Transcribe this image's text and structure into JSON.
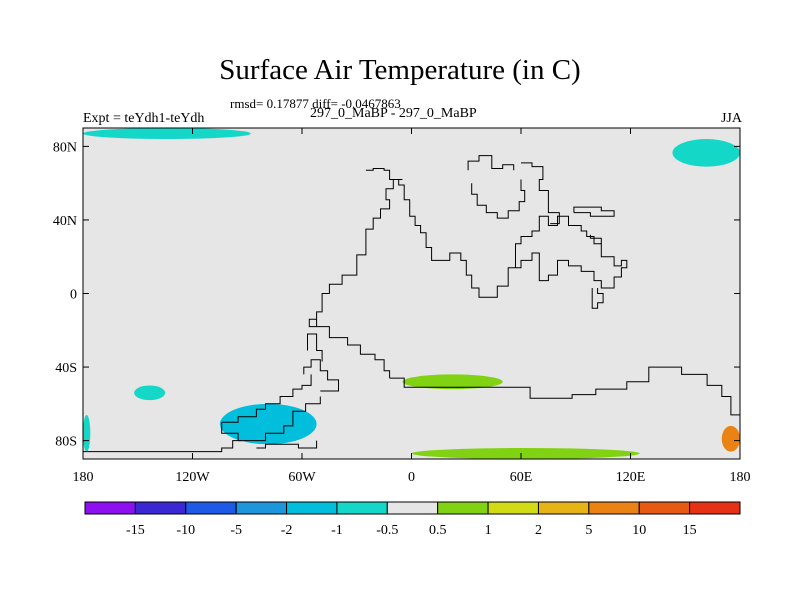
{
  "header": {
    "title": "Surface Air Temperature (in C)",
    "stats": "rmsd= 0.17877 diff= -0.0467863",
    "expt": "Expt = teYdh1-teYdh",
    "run": "297_0_MaBP - 297_0_MaBP",
    "season": "JJA"
  },
  "chart_data": {
    "type": "heatmap",
    "title": "Surface Air Temperature (in C)",
    "xlabel": "",
    "ylabel": "",
    "x_ticks": [
      {
        "value": -180,
        "label": "180"
      },
      {
        "value": -120,
        "label": "120W"
      },
      {
        "value": -60,
        "label": "60W"
      },
      {
        "value": 0,
        "label": "0"
      },
      {
        "value": 60,
        "label": "60E"
      },
      {
        "value": 120,
        "label": "120E"
      },
      {
        "value": 180,
        "label": "180"
      }
    ],
    "y_ticks": [
      {
        "value": 80,
        "label": "80N"
      },
      {
        "value": 40,
        "label": "40N"
      },
      {
        "value": 0,
        "label": "0"
      },
      {
        "value": -40,
        "label": "40S"
      },
      {
        "value": -80,
        "label": "80S"
      }
    ],
    "xlim": [
      -180,
      180
    ],
    "ylim": [
      -90,
      90
    ],
    "background_value_range": [
      -0.5,
      0.5
    ],
    "colorbar": {
      "levels": [
        "-15",
        "-10",
        "-5",
        "-2",
        "-1",
        "-0.5",
        "0.5",
        "1",
        "2",
        "5",
        "10",
        "15"
      ],
      "colors": [
        "#8c10f0",
        "#3c28d2",
        "#1e5ae6",
        "#1e96dc",
        "#00bedc",
        "#14d7c8",
        "#e6e6e6",
        "#82d214",
        "#d2dc14",
        "#e6b414",
        "#eb8214",
        "#e65a14",
        "#e63214"
      ]
    },
    "anomaly_regions": [
      {
        "name": "north-pacific-arctic",
        "value": -0.75,
        "lon": [
          -180,
          -88
        ],
        "lat": [
          84,
          90
        ]
      },
      {
        "name": "arctic-east",
        "value": -0.75,
        "lon": [
          143,
          180
        ],
        "lat": [
          69,
          84
        ]
      },
      {
        "name": "south-pacific",
        "value": -0.75,
        "lon": [
          -152,
          -135
        ],
        "lat": [
          -58,
          -50
        ]
      },
      {
        "name": "south-atlantic-band",
        "value": 0.75,
        "lon": [
          -5,
          50
        ],
        "lat": [
          -52,
          -44
        ]
      },
      {
        "name": "southern-ocean-band",
        "value": 0.75,
        "lon": [
          0,
          125
        ],
        "lat": [
          -90,
          -84
        ]
      },
      {
        "name": "antarctic-peninsula",
        "value": -1.5,
        "lon": [
          -105,
          -52
        ],
        "lat": [
          -82,
          -60
        ]
      },
      {
        "name": "antarctic-dateline",
        "value": -0.75,
        "lon": [
          -180,
          -176
        ],
        "lat": [
          -86,
          -66
        ]
      },
      {
        "name": "ross-sea-east",
        "value": 5,
        "lon": [
          170,
          180
        ],
        "lat": [
          -86,
          -72
        ]
      }
    ],
    "coastline": [
      [
        [
          -25,
          67
        ],
        [
          -21,
          67
        ],
        [
          -21,
          68
        ],
        [
          -15,
          68
        ],
        [
          -15,
          67
        ],
        [
          -12,
          67
        ],
        [
          -12,
          62
        ],
        [
          -7,
          62
        ],
        [
          -7,
          59
        ],
        [
          -4,
          59
        ],
        [
          -4,
          51
        ],
        [
          -1,
          51
        ],
        [
          -1,
          42
        ],
        [
          2,
          42
        ],
        [
          2,
          37
        ],
        [
          5,
          37
        ],
        [
          5,
          33
        ],
        [
          8,
          33
        ],
        [
          8,
          25
        ],
        [
          11,
          25
        ],
        [
          11,
          18
        ],
        [
          21,
          18
        ],
        [
          21,
          22
        ],
        [
          27,
          22
        ],
        [
          27,
          18
        ],
        [
          30,
          18
        ],
        [
          30,
          10
        ],
        [
          33,
          10
        ],
        [
          33,
          3
        ],
        [
          37,
          3
        ],
        [
          37,
          -2
        ],
        [
          47,
          -2
        ],
        [
          47,
          4
        ],
        [
          53,
          4
        ],
        [
          53,
          14
        ],
        [
          57,
          14
        ],
        [
          57,
          27
        ],
        [
          60,
          27
        ],
        [
          60,
          31
        ],
        [
          66,
          31
        ],
        [
          66,
          34
        ],
        [
          70,
          34
        ],
        [
          70,
          42
        ],
        [
          75,
          42
        ],
        [
          75,
          37
        ],
        [
          80,
          37
        ],
        [
          80,
          42
        ],
        [
          86,
          42
        ],
        [
          86,
          37
        ],
        [
          93,
          37
        ],
        [
          93,
          34
        ],
        [
          96,
          34
        ],
        [
          96,
          31
        ],
        [
          100,
          31
        ],
        [
          100,
          27
        ],
        [
          104,
          27
        ],
        [
          104,
          20
        ],
        [
          111,
          20
        ],
        [
          111,
          15
        ],
        [
          115,
          15
        ],
        [
          115,
          18
        ],
        [
          118,
          18
        ],
        [
          118,
          14
        ],
        [
          115,
          14
        ],
        [
          115,
          9
        ],
        [
          111,
          9
        ],
        [
          111,
          3
        ],
        [
          104,
          3
        ],
        [
          104,
          7
        ],
        [
          100,
          7
        ],
        [
          100,
          12
        ],
        [
          93,
          12
        ],
        [
          93,
          15
        ],
        [
          86,
          15
        ],
        [
          86,
          18
        ],
        [
          80,
          18
        ],
        [
          80,
          10
        ],
        [
          75,
          10
        ],
        [
          75,
          7
        ],
        [
          70,
          7
        ],
        [
          70,
          22
        ],
        [
          66,
          22
        ],
        [
          66,
          18
        ],
        [
          60,
          18
        ],
        [
          60,
          14
        ],
        [
          53,
          14
        ]
      ],
      [
        [
          60,
          71
        ],
        [
          66,
          71
        ],
        [
          66,
          69
        ],
        [
          72,
          69
        ],
        [
          72,
          62
        ],
        [
          70,
          62
        ],
        [
          70,
          56
        ],
        [
          75,
          56
        ],
        [
          75,
          44
        ],
        [
          81,
          44
        ],
        [
          81,
          38
        ],
        [
          76,
          38
        ]
      ],
      [
        [
          31,
          67
        ],
        [
          31,
          72
        ],
        [
          37,
          72
        ],
        [
          37,
          75
        ],
        [
          44,
          75
        ],
        [
          44,
          68
        ],
        [
          50,
          68
        ],
        [
          50,
          70
        ],
        [
          56,
          70
        ],
        [
          56,
          67
        ]
      ],
      [
        [
          33,
          60
        ],
        [
          33,
          54
        ],
        [
          36,
          54
        ],
        [
          36,
          48
        ],
        [
          41,
          48
        ],
        [
          41,
          44
        ],
        [
          47,
          44
        ],
        [
          47,
          41
        ],
        [
          53,
          41
        ],
        [
          53,
          45
        ],
        [
          59,
          45
        ],
        [
          59,
          50
        ],
        [
          62,
          50
        ],
        [
          62,
          56
        ],
        [
          60,
          56
        ],
        [
          60,
          62
        ]
      ],
      [
        [
          89,
          44
        ],
        [
          89,
          47
        ],
        [
          104,
          47
        ],
        [
          104,
          45
        ],
        [
          111,
          45
        ],
        [
          111,
          42
        ],
        [
          98,
          42
        ],
        [
          98,
          44
        ],
        [
          89,
          44
        ]
      ],
      [
        [
          98,
          32
        ],
        [
          98,
          30
        ],
        [
          104,
          30
        ],
        [
          104,
          27
        ]
      ],
      [
        [
          102,
          3
        ],
        [
          102,
          0
        ],
        [
          105,
          0
        ],
        [
          105,
          -5
        ],
        [
          102,
          -5
        ],
        [
          102,
          -8
        ],
        [
          99,
          -8
        ],
        [
          99,
          3
        ]
      ],
      [
        [
          -52,
          -18
        ],
        [
          -52,
          -10
        ],
        [
          -49,
          -10
        ],
        [
          -49,
          0
        ],
        [
          -45,
          0
        ],
        [
          -45,
          5
        ],
        [
          -38,
          5
        ],
        [
          -38,
          10
        ],
        [
          -30,
          10
        ],
        [
          -30,
          21
        ],
        [
          -25,
          21
        ],
        [
          -25,
          35
        ],
        [
          -21,
          35
        ],
        [
          -21,
          41
        ],
        [
          -17,
          41
        ],
        [
          -17,
          46
        ],
        [
          -12,
          46
        ],
        [
          -12,
          51
        ],
        [
          -14,
          51
        ],
        [
          -14,
          57
        ],
        [
          -10,
          57
        ],
        [
          -10,
          62
        ],
        [
          -5,
          62
        ]
      ],
      [
        [
          -52,
          -18
        ],
        [
          -56,
          -18
        ],
        [
          -56,
          -14
        ],
        [
          -52,
          -14
        ]
      ],
      [
        [
          -57,
          -31
        ],
        [
          -57,
          -22
        ],
        [
          -52,
          -22
        ],
        [
          -52,
          -31
        ],
        [
          -49,
          -31
        ],
        [
          -49,
          -37
        ]
      ],
      [
        [
          -52,
          -18
        ],
        [
          -45,
          -18
        ],
        [
          -45,
          -24
        ],
        [
          -35,
          -24
        ],
        [
          -35,
          -28
        ],
        [
          -28,
          -28
        ],
        [
          -28,
          -33
        ],
        [
          -20,
          -33
        ],
        [
          -20,
          -36
        ],
        [
          -15,
          -36
        ],
        [
          -15,
          -42
        ],
        [
          -12,
          -42
        ],
        [
          -12,
          -46
        ]
      ],
      [
        [
          -59,
          -44
        ],
        [
          -59,
          -40
        ],
        [
          -55,
          -40
        ],
        [
          -55,
          -36
        ],
        [
          -50,
          -36
        ],
        [
          -50,
          -42
        ],
        [
          -46,
          -42
        ],
        [
          -46,
          -47
        ],
        [
          -40,
          -47
        ],
        [
          -40,
          -53
        ],
        [
          -50,
          -53
        ]
      ],
      [
        [
          -104,
          -70
        ],
        [
          -95,
          -70
        ],
        [
          -95,
          -67
        ],
        [
          -85,
          -67
        ],
        [
          -85,
          -63
        ],
        [
          -80,
          -63
        ],
        [
          -80,
          -60
        ],
        [
          -72,
          -60
        ],
        [
          -72,
          -56
        ],
        [
          -65,
          -56
        ],
        [
          -65,
          -52
        ],
        [
          -60,
          -52
        ],
        [
          -60,
          -50
        ],
        [
          -55,
          -50
        ],
        [
          -55,
          -44
        ]
      ],
      [
        [
          -104,
          -70
        ],
        [
          -104,
          -76
        ],
        [
          -95,
          -76
        ],
        [
          -95,
          -80
        ],
        [
          -80,
          -80
        ],
        [
          -80,
          -76
        ],
        [
          -70,
          -76
        ],
        [
          -70,
          -72
        ],
        [
          -65,
          -72
        ],
        [
          -65,
          -64
        ],
        [
          -58,
          -64
        ],
        [
          -58,
          -60
        ],
        [
          -50,
          -60
        ],
        [
          -50,
          -56
        ]
      ],
      [
        [
          -85,
          -84
        ],
        [
          -80,
          -84
        ],
        [
          -80,
          -82
        ],
        [
          -62,
          -82
        ],
        [
          -62,
          -84
        ],
        [
          -52,
          -84
        ],
        [
          -52,
          -80
        ]
      ],
      [
        [
          -180,
          -86
        ],
        [
          -104,
          -86
        ],
        [
          -104,
          -84
        ],
        [
          -98,
          -84
        ],
        [
          -98,
          -80
        ],
        [
          -93,
          -80
        ]
      ],
      [
        [
          -12,
          -46
        ],
        [
          -4,
          -46
        ],
        [
          -4,
          -51
        ],
        [
          65,
          -51
        ],
        [
          65,
          -57
        ],
        [
          88,
          -57
        ],
        [
          88,
          -55
        ],
        [
          101,
          -55
        ],
        [
          101,
          -52
        ],
        [
          118,
          -52
        ],
        [
          118,
          -48
        ],
        [
          130,
          -48
        ],
        [
          130,
          -40
        ],
        [
          148,
          -40
        ],
        [
          148,
          -44
        ],
        [
          162,
          -44
        ],
        [
          162,
          -50
        ],
        [
          170,
          -50
        ],
        [
          170,
          -56
        ],
        [
          175,
          -56
        ],
        [
          175,
          -66
        ],
        [
          180,
          -66
        ]
      ]
    ]
  }
}
